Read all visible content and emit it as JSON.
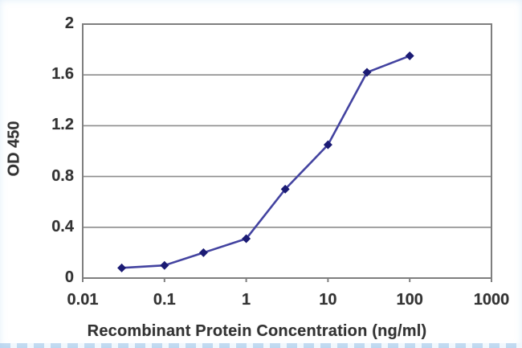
{
  "chart_data": {
    "type": "line",
    "title": "",
    "xlabel": "Recombinant Protein Concentration (ng/ml)",
    "ylabel": "OD 450",
    "x_scale": "log",
    "xlim": [
      0.01,
      1000
    ],
    "ylim": [
      0,
      2
    ],
    "x_tick_values": [
      0.01,
      0.1,
      1,
      10,
      100,
      1000
    ],
    "x_tick_labels": [
      "0.01",
      "0.1",
      "1",
      "10",
      "100",
      "1000"
    ],
    "y_tick_values": [
      0,
      0.4,
      0.8,
      1.2,
      1.6,
      2
    ],
    "y_tick_labels": [
      "0",
      "0.4",
      "0.8",
      "1.2",
      "1.6",
      "2"
    ],
    "grid": "horizontal",
    "legend": "none",
    "series": [
      {
        "name": "OD 450",
        "marker": "diamond",
        "x": [
          0.03,
          0.1,
          0.3,
          1,
          3,
          10,
          30,
          100
        ],
        "y": [
          0.08,
          0.1,
          0.2,
          0.31,
          0.7,
          1.05,
          1.62,
          1.75
        ]
      }
    ],
    "colors": {
      "line": "#4343a0",
      "marker": "#1b1b74",
      "grid": "#8c8c8c",
      "axis": "#7f7f7f",
      "text": "#333333"
    }
  }
}
